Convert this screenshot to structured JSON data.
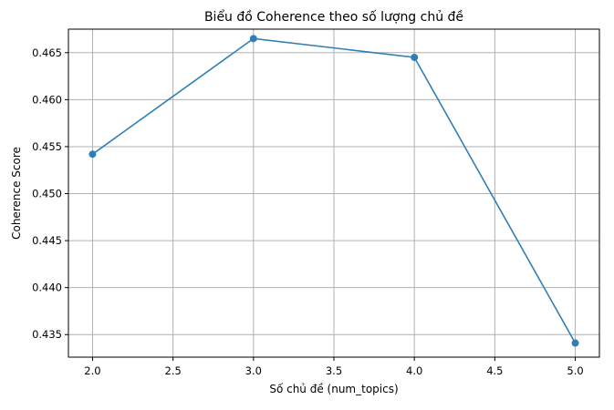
{
  "chart_data": {
    "type": "line",
    "title": "Biểu đồ Coherence theo số lượng chủ đề",
    "xlabel": "Số chủ đề (num_topics)",
    "ylabel": "Coherence Score",
    "x": [
      2.0,
      3.0,
      4.0,
      5.0
    ],
    "y": [
      0.4542,
      0.4665,
      0.4645,
      0.4341
    ],
    "xlim": [
      1.85,
      5.15
    ],
    "ylim": [
      0.4326,
      0.4675
    ],
    "xticks": [
      2.0,
      2.5,
      3.0,
      3.5,
      4.0,
      4.5,
      5.0
    ],
    "xtick_labels": [
      "2.0",
      "2.5",
      "3.0",
      "3.5",
      "4.0",
      "4.5",
      "5.0"
    ],
    "yticks": [
      0.435,
      0.44,
      0.445,
      0.45,
      0.455,
      0.46,
      0.465
    ],
    "ytick_labels": [
      "0.435",
      "0.440",
      "0.445",
      "0.450",
      "0.455",
      "0.460",
      "0.465"
    ],
    "grid": true,
    "marker": "circle",
    "color": "#2f7fb6"
  }
}
